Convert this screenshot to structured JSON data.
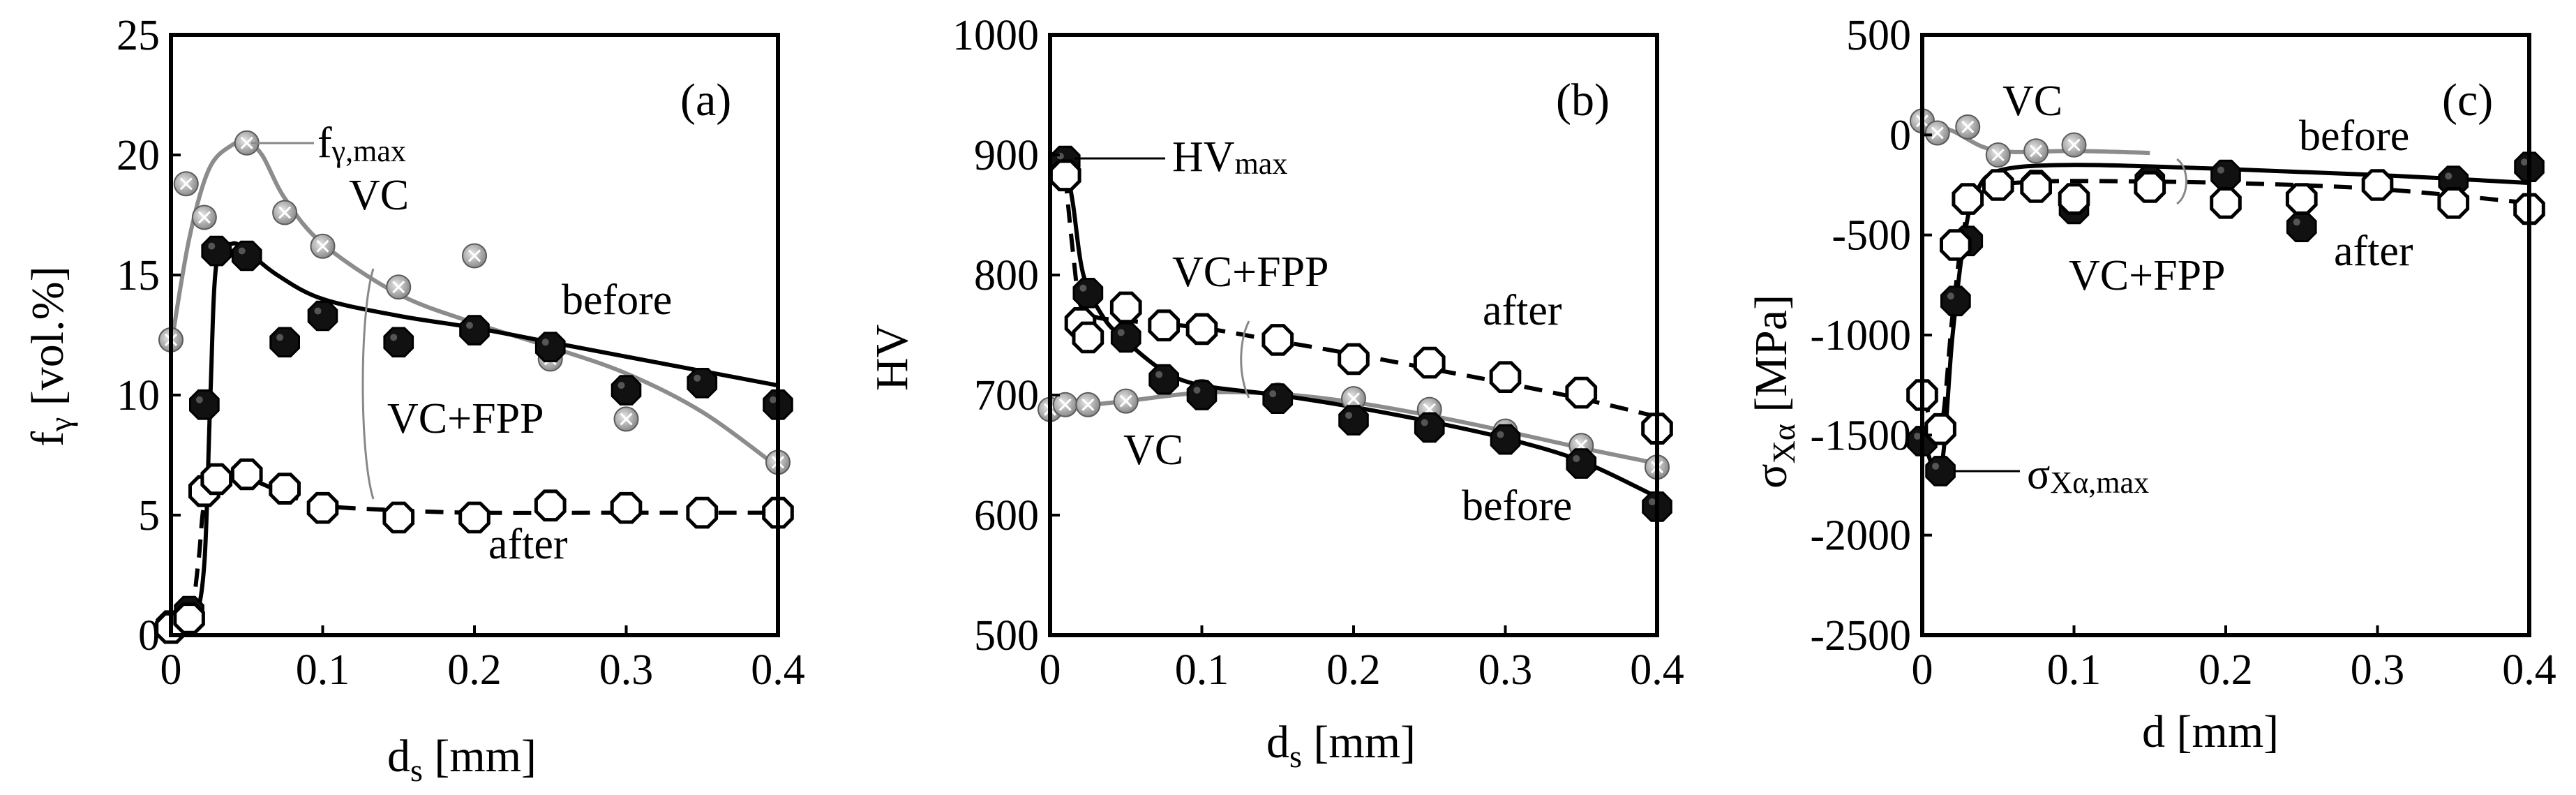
{
  "chart_data": [
    {
      "type": "scatter",
      "panel_letter": "(a)",
      "ylabel_main": "f",
      "ylabel_sub": "γ",
      "ylabel_rest": " [vol.%]",
      "xlabel_main": "d",
      "xlabel_sub": "s",
      "xlabel_rest": " [mm]",
      "xlim": [
        0,
        0.4
      ],
      "ylim": [
        0,
        25
      ],
      "x_ticks": [
        0,
        0.1,
        0.2,
        0.3,
        0.4
      ],
      "x_tick_labels": [
        "0",
        "0.1",
        "0.2",
        "0.3",
        "0.4"
      ],
      "y_ticks": [
        0,
        5,
        10,
        15,
        20,
        25
      ],
      "y_tick_labels": [
        "0",
        "5",
        "10",
        "15",
        "20",
        "25"
      ],
      "series": [
        {
          "name": "VC",
          "marker": "gray-cross",
          "line": "gray",
          "points": [
            [
              0.0,
              12.3
            ],
            [
              0.01,
              18.8
            ],
            [
              0.022,
              17.4
            ],
            [
              0.05,
              20.5
            ],
            [
              0.075,
              17.6
            ],
            [
              0.1,
              16.2
            ],
            [
              0.15,
              14.5
            ],
            [
              0.2,
              15.8
            ],
            [
              0.25,
              11.5
            ],
            [
              0.3,
              9.0
            ],
            [
              0.4,
              7.2
            ]
          ],
          "curve": [
            [
              0.0,
              12.0
            ],
            [
              0.012,
              16.5
            ],
            [
              0.025,
              19.4
            ],
            [
              0.04,
              20.4
            ],
            [
              0.05,
              20.5
            ],
            [
              0.06,
              20.0
            ],
            [
              0.075,
              18.2
            ],
            [
              0.1,
              16.3
            ],
            [
              0.15,
              14.2
            ],
            [
              0.2,
              13.0
            ],
            [
              0.25,
              12.0
            ],
            [
              0.3,
              10.9
            ],
            [
              0.35,
              9.3
            ],
            [
              0.4,
              7.0
            ]
          ]
        },
        {
          "name": "VC+FPP before",
          "marker": "black-filled",
          "line": "black-solid",
          "points": [
            [
              0.0,
              0.4
            ],
            [
              0.012,
              1.0
            ],
            [
              0.022,
              9.6
            ],
            [
              0.03,
              16.0
            ],
            [
              0.05,
              15.8
            ],
            [
              0.075,
              12.2
            ],
            [
              0.1,
              13.3
            ],
            [
              0.15,
              12.2
            ],
            [
              0.2,
              12.7
            ],
            [
              0.25,
              12.0
            ],
            [
              0.3,
              10.2
            ],
            [
              0.35,
              10.5
            ],
            [
              0.4,
              9.6
            ]
          ],
          "curve": [
            [
              0.0,
              0.3
            ],
            [
              0.015,
              0.7
            ],
            [
              0.022,
              3.0
            ],
            [
              0.026,
              10.0
            ],
            [
              0.03,
              15.5
            ],
            [
              0.04,
              16.3
            ],
            [
              0.05,
              16.0
            ],
            [
              0.07,
              15.0
            ],
            [
              0.1,
              14.0
            ],
            [
              0.15,
              13.3
            ],
            [
              0.2,
              12.8
            ],
            [
              0.25,
              12.2
            ],
            [
              0.3,
              11.6
            ],
            [
              0.35,
              11.0
            ],
            [
              0.4,
              10.4
            ]
          ]
        },
        {
          "name": "VC+FPP after",
          "marker": "open-octagon",
          "line": "black-dashed",
          "points": [
            [
              0.0,
              0.3
            ],
            [
              0.012,
              0.7
            ],
            [
              0.022,
              6.0
            ],
            [
              0.03,
              6.5
            ],
            [
              0.05,
              6.7
            ],
            [
              0.075,
              6.1
            ],
            [
              0.1,
              5.3
            ],
            [
              0.15,
              4.9
            ],
            [
              0.2,
              4.9
            ],
            [
              0.25,
              5.4
            ],
            [
              0.3,
              5.3
            ],
            [
              0.35,
              5.1
            ],
            [
              0.4,
              5.1
            ]
          ],
          "curve": [
            [
              0.0,
              0.2
            ],
            [
              0.012,
              0.5
            ],
            [
              0.018,
              3.0
            ],
            [
              0.022,
              5.5
            ],
            [
              0.03,
              6.3
            ],
            [
              0.05,
              6.5
            ],
            [
              0.075,
              5.9
            ],
            [
              0.1,
              5.4
            ],
            [
              0.15,
              5.2
            ],
            [
              0.2,
              5.1
            ],
            [
              0.3,
              5.1
            ],
            [
              0.4,
              5.1
            ]
          ]
        }
      ],
      "annotations": [
        {
          "text": "VC"
        },
        {
          "text": "before"
        },
        {
          "text": "VC+FPP"
        },
        {
          "text": "after"
        },
        {
          "text_main": "f",
          "text_sub": "γ,max"
        }
      ]
    },
    {
      "type": "scatter",
      "panel_letter": "(b)",
      "ylabel_main": "HV",
      "xlabel_main": "d",
      "xlabel_sub": "s",
      "xlabel_rest": " [mm]",
      "xlim": [
        0,
        0.4
      ],
      "ylim": [
        500,
        1000
      ],
      "x_ticks": [
        0,
        0.1,
        0.2,
        0.3,
        0.4
      ],
      "x_tick_labels": [
        "0",
        "0.1",
        "0.2",
        "0.3",
        "0.4"
      ],
      "y_ticks": [
        500,
        600,
        700,
        800,
        900,
        1000
      ],
      "y_tick_labels": [
        "500",
        "600",
        "700",
        "800",
        "900",
        "1000"
      ],
      "series": [
        {
          "name": "VC",
          "marker": "gray-cross",
          "line": "gray",
          "points": [
            [
              0.0,
              688
            ],
            [
              0.01,
              692
            ],
            [
              0.025,
              692
            ],
            [
              0.05,
              695
            ],
            [
              0.075,
              712
            ],
            [
              0.1,
              703
            ],
            [
              0.15,
              700
            ],
            [
              0.2,
              697
            ],
            [
              0.25,
              688
            ],
            [
              0.3,
              670
            ],
            [
              0.35,
              658
            ],
            [
              0.4,
              640
            ]
          ],
          "curve": [
            [
              0.0,
              688
            ],
            [
              0.05,
              695
            ],
            [
              0.1,
              702
            ],
            [
              0.15,
              701
            ],
            [
              0.2,
              694
            ],
            [
              0.25,
              683
            ],
            [
              0.3,
              670
            ],
            [
              0.35,
              656
            ],
            [
              0.4,
              643
            ]
          ]
        },
        {
          "name": "VC+FPP before",
          "marker": "black-filled",
          "line": "black-solid",
          "points": [
            [
              0.01,
              895
            ],
            [
              0.025,
              785
            ],
            [
              0.05,
              748
            ],
            [
              0.075,
              713
            ],
            [
              0.1,
              700
            ],
            [
              0.15,
              697
            ],
            [
              0.2,
              679
            ],
            [
              0.25,
              673
            ],
            [
              0.3,
              663
            ],
            [
              0.35,
              643
            ],
            [
              0.4,
              607
            ]
          ],
          "curve": [
            [
              0.01,
              895
            ],
            [
              0.015,
              860
            ],
            [
              0.022,
              800
            ],
            [
              0.035,
              765
            ],
            [
              0.05,
              745
            ],
            [
              0.075,
              720
            ],
            [
              0.1,
              708
            ],
            [
              0.15,
              700
            ],
            [
              0.2,
              690
            ],
            [
              0.25,
              678
            ],
            [
              0.3,
              664
            ],
            [
              0.35,
              645
            ],
            [
              0.4,
              615
            ]
          ]
        },
        {
          "name": "VC+FPP after",
          "marker": "open-octagon",
          "line": "black-dashed",
          "points": [
            [
              0.01,
              883
            ],
            [
              0.02,
              760
            ],
            [
              0.025,
              748
            ],
            [
              0.05,
              773
            ],
            [
              0.075,
              758
            ],
            [
              0.1,
              755
            ],
            [
              0.15,
              746
            ],
            [
              0.2,
              730
            ],
            [
              0.25,
              727
            ],
            [
              0.3,
              715
            ],
            [
              0.35,
              702
            ],
            [
              0.4,
              672
            ]
          ],
          "curve": [
            [
              0.01,
              883
            ],
            [
              0.015,
              820
            ],
            [
              0.02,
              775
            ],
            [
              0.03,
              765
            ],
            [
              0.05,
              762
            ],
            [
              0.1,
              756
            ],
            [
              0.15,
              745
            ],
            [
              0.2,
              734
            ],
            [
              0.25,
              722
            ],
            [
              0.3,
              710
            ],
            [
              0.35,
              697
            ],
            [
              0.4,
              682
            ]
          ]
        }
      ],
      "annotations": [
        {
          "text": "HV",
          "text_sub": "max"
        },
        {
          "text": "VC+FPP"
        },
        {
          "text": "after"
        },
        {
          "text": "VC"
        },
        {
          "text": "before"
        }
      ]
    },
    {
      "type": "scatter",
      "panel_letter": "(c)",
      "ylabel_main": "σ",
      "ylabel_sub": "Xα",
      "ylabel_rest": " [MPa]",
      "xlabel_main": "d",
      "xlabel_rest": " [mm]",
      "xlim": [
        0,
        0.4
      ],
      "ylim": [
        -2500,
        500
      ],
      "x_ticks": [
        0,
        0.1,
        0.2,
        0.3,
        0.4
      ],
      "x_tick_labels": [
        "0",
        "0.1",
        "0.2",
        "0.3",
        "0.4"
      ],
      "y_ticks": [
        -2500,
        -2000,
        -1500,
        -1000,
        -500,
        0,
        500
      ],
      "y_tick_labels": [
        "-2500",
        "-2000",
        "-1500",
        "-1000",
        "-500",
        "0",
        "500"
      ],
      "series": [
        {
          "name": "VC",
          "marker": "gray-cross",
          "line": "gray",
          "points": [
            [
              0.0,
              70
            ],
            [
              0.01,
              10
            ],
            [
              0.03,
              40
            ],
            [
              0.05,
              -100
            ],
            [
              0.075,
              -80
            ],
            [
              0.1,
              -50
            ]
          ],
          "curve": [
            [
              0.0,
              70
            ],
            [
              0.02,
              20
            ],
            [
              0.04,
              -60
            ],
            [
              0.06,
              -85
            ],
            [
              0.1,
              -80
            ],
            [
              0.15,
              -90
            ]
          ]
        },
        {
          "name": "VC+FPP before",
          "marker": "black-filled",
          "line": "black-solid",
          "points": [
            [
              0.0,
              -1530
            ],
            [
              0.012,
              -1680
            ],
            [
              0.022,
              -830
            ],
            [
              0.03,
              -530
            ],
            [
              0.05,
              -250
            ],
            [
              0.075,
              -250
            ],
            [
              0.1,
              -370
            ],
            [
              0.15,
              -230
            ],
            [
              0.2,
              -200
            ],
            [
              0.25,
              -460
            ],
            [
              0.35,
              -230
            ],
            [
              0.4,
              -160
            ]
          ],
          "curve": [
            [
              0.0,
              -1500
            ],
            [
              0.012,
              -1680
            ],
            [
              0.02,
              -1000
            ],
            [
              0.028,
              -500
            ],
            [
              0.035,
              -300
            ],
            [
              0.05,
              -180
            ],
            [
              0.1,
              -150
            ],
            [
              0.2,
              -170
            ],
            [
              0.3,
              -200
            ],
            [
              0.4,
              -240
            ]
          ]
        },
        {
          "name": "VC+FPP after",
          "marker": "open-octagon",
          "line": "black-dashed",
          "points": [
            [
              0.0,
              -1300
            ],
            [
              0.012,
              -1470
            ],
            [
              0.022,
              -550
            ],
            [
              0.03,
              -320
            ],
            [
              0.05,
              -250
            ],
            [
              0.075,
              -260
            ],
            [
              0.1,
              -320
            ],
            [
              0.15,
              -260
            ],
            [
              0.2,
              -340
            ],
            [
              0.25,
              -320
            ],
            [
              0.3,
              -250
            ],
            [
              0.35,
              -340
            ],
            [
              0.4,
              -370
            ]
          ],
          "curve": [
            [
              0.0,
              -1300
            ],
            [
              0.012,
              -1470
            ],
            [
              0.02,
              -900
            ],
            [
              0.028,
              -450
            ],
            [
              0.04,
              -260
            ],
            [
              0.06,
              -240
            ],
            [
              0.1,
              -230
            ],
            [
              0.2,
              -240
            ],
            [
              0.3,
              -270
            ],
            [
              0.4,
              -340
            ]
          ]
        }
      ],
      "annotations": [
        {
          "text": "VC"
        },
        {
          "text": "before"
        },
        {
          "text": "VC+FPP"
        },
        {
          "text": "after"
        },
        {
          "text_main": "σ",
          "text_sub": "Xα,max"
        }
      ]
    }
  ]
}
